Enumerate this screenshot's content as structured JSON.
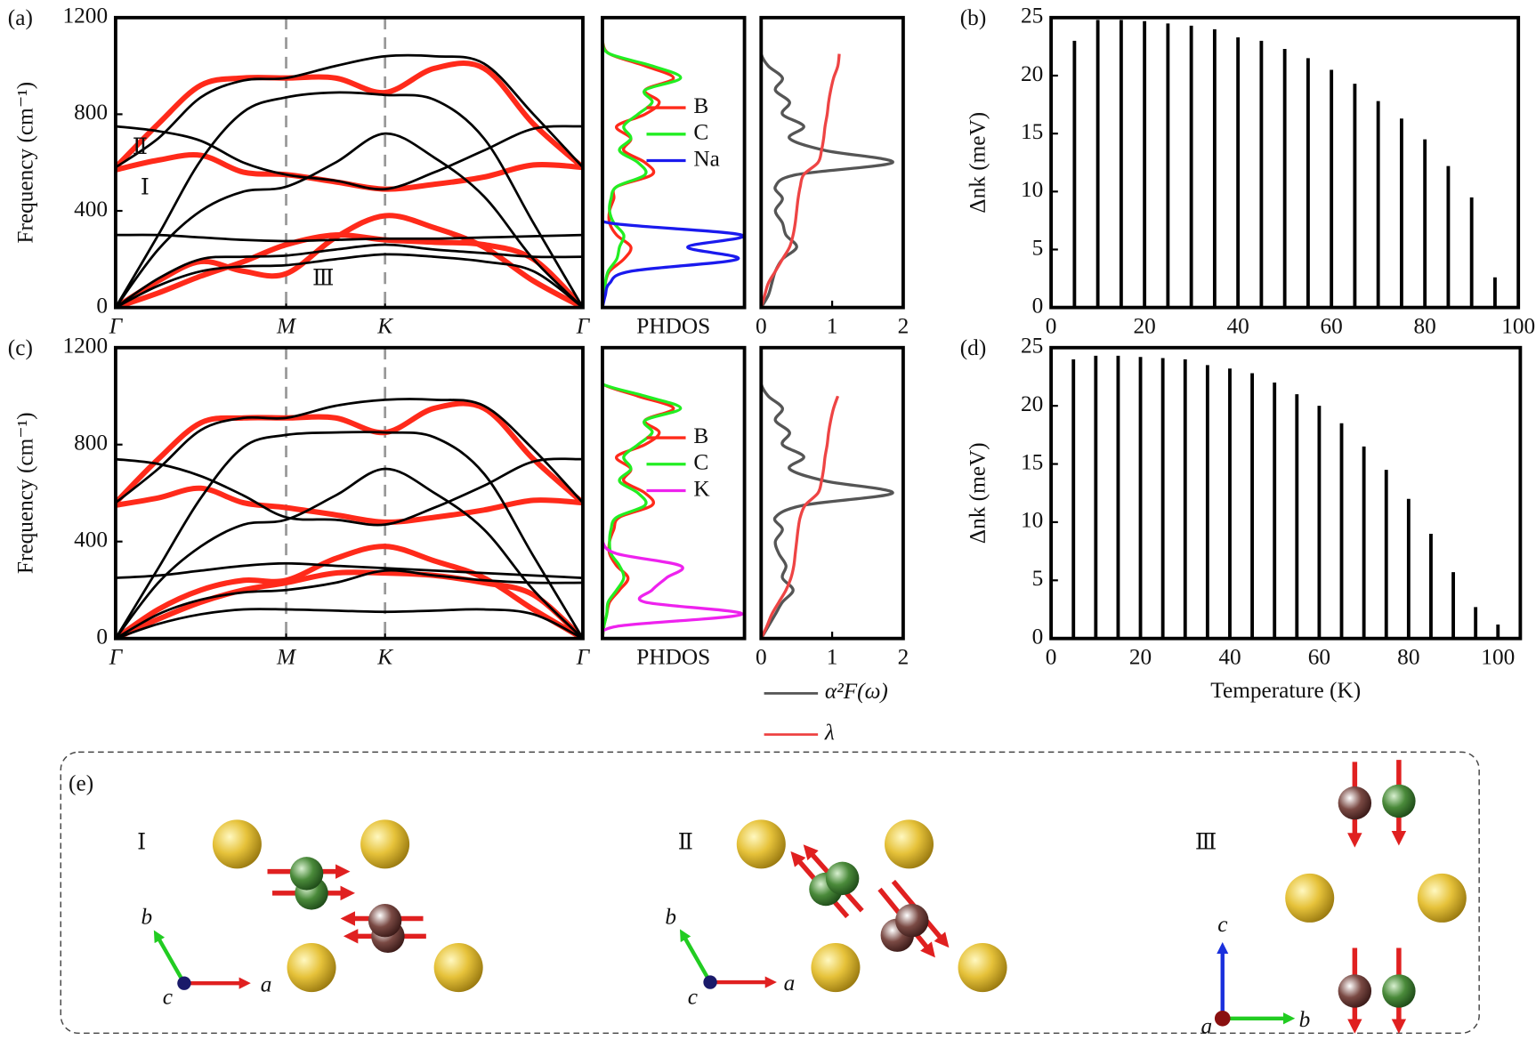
{
  "chart_data": [
    {
      "type": "line",
      "label": "(a)",
      "ylabel": "Frequency (cm⁻¹)",
      "x": [
        0,
        0.25,
        0.5,
        0.75,
        1,
        1.29,
        1.58,
        1.87,
        2.16,
        2.45,
        2.74
      ],
      "xlim": [
        0,
        2.74
      ],
      "xticks": [
        {
          "value": 0,
          "label": "Γ"
        },
        {
          "value": 1,
          "label": "M"
        },
        {
          "value": 1.58,
          "label": "K"
        },
        {
          "value": 2.74,
          "label": "Γ"
        }
      ],
      "xgrid": true,
      "ylim": [
        0,
        1200
      ],
      "yticks": [
        0,
        400,
        800,
        1200
      ],
      "annotations": [
        "Ⅱ",
        "Ⅰ",
        "Ⅲ"
      ],
      "series": [
        {
          "color": "#000000",
          "values": [
            750,
            730,
            690,
            600,
            550,
            525,
            490,
            560,
            650,
            740,
            750
          ]
        },
        {
          "color": "#000000",
          "values": [
            580,
            700,
            870,
            940,
            950,
            1000,
            1040,
            1040,
            1010,
            800,
            580
          ]
        },
        {
          "color": "#ff2a1a",
          "values": [
            580,
            760,
            920,
            950,
            950,
            950,
            890,
            990,
            990,
            760,
            580
          ]
        },
        {
          "color": "#000000",
          "values": [
            0,
            300,
            610,
            810,
            870,
            890,
            880,
            860,
            700,
            350,
            0
          ]
        },
        {
          "color": "#000000",
          "values": [
            0,
            240,
            400,
            480,
            500,
            600,
            720,
            620,
            460,
            200,
            0
          ]
        },
        {
          "color": "#ff2a1a",
          "values": [
            570,
            610,
            630,
            560,
            550,
            520,
            490,
            510,
            540,
            590,
            580
          ]
        },
        {
          "color": "#000000",
          "values": [
            300,
            300,
            290,
            280,
            275,
            280,
            285,
            285,
            290,
            295,
            300
          ]
        },
        {
          "color": "#ff2a1a",
          "values": [
            0,
            110,
            190,
            150,
            140,
            290,
            380,
            330,
            250,
            110,
            0
          ]
        },
        {
          "color": "#000000",
          "values": [
            0,
            120,
            200,
            210,
            215,
            240,
            260,
            240,
            225,
            210,
            210
          ]
        },
        {
          "color": "#000000",
          "values": [
            0,
            90,
            150,
            170,
            175,
            200,
            220,
            210,
            190,
            150,
            0
          ]
        },
        {
          "color": "#ff2a1a",
          "values": [
            0,
            60,
            130,
            190,
            260,
            300,
            280,
            270,
            260,
            200,
            0
          ]
        }
      ]
    },
    {
      "type": "line",
      "orientation": "horizontal",
      "xlabel": "PHDOS",
      "x": [
        0,
        50,
        100,
        150,
        200,
        250,
        300,
        350,
        400,
        450,
        500,
        550,
        600,
        650,
        700,
        750,
        800,
        850,
        900,
        950,
        1000,
        1050,
        1100
      ],
      "xlim": [
        0,
        1
      ],
      "ylim": [
        0,
        1200
      ],
      "legend": "right",
      "series": [
        {
          "name": "B",
          "color": "#ff2a1a",
          "values": [
            0,
            0.01,
            0.02,
            0.05,
            0.15,
            0.2,
            0.1,
            0.05,
            0.05,
            0.08,
            0.1,
            0.35,
            0.3,
            0.15,
            0.2,
            0.1,
            0.3,
            0.4,
            0.3,
            0.5,
            0.3,
            0.05,
            0
          ]
        },
        {
          "name": "C",
          "color": "#22ee22",
          "values": [
            0,
            0.01,
            0.02,
            0.04,
            0.1,
            0.12,
            0.15,
            0.08,
            0.05,
            0.06,
            0.1,
            0.3,
            0.25,
            0.12,
            0.2,
            0.15,
            0.25,
            0.35,
            0.3,
            0.55,
            0.35,
            0.05,
            0
          ]
        },
        {
          "name": "Na",
          "color": "#1a1aee",
          "values": [
            0,
            0.02,
            0.05,
            0.2,
            0.95,
            0.6,
            0.98,
            0.05,
            0,
            0,
            0,
            0,
            0,
            0,
            0,
            0,
            0,
            0,
            0,
            0,
            0,
            0,
            0
          ]
        }
      ]
    },
    {
      "type": "line",
      "orientation": "horizontal",
      "x": [
        0,
        50,
        100,
        150,
        200,
        250,
        300,
        350,
        400,
        450,
        500,
        550,
        600,
        650,
        700,
        750,
        800,
        850,
        900,
        950,
        1000,
        1050,
        1100
      ],
      "xlim": [
        0,
        2
      ],
      "xticks": [
        0,
        1,
        2
      ],
      "ylim": [
        0,
        1200
      ],
      "series": [
        {
          "color": "#555555",
          "values": [
            0,
            0.1,
            0.15,
            0.2,
            0.3,
            0.5,
            0.35,
            0.3,
            0.2,
            0.3,
            0.2,
            0.5,
            1.85,
            0.9,
            0.4,
            0.6,
            0.3,
            0.4,
            0.2,
            0.3,
            0.1,
            0,
            0
          ]
        },
        {
          "color": "#ee4444",
          "values": [
            0,
            0.05,
            0.1,
            0.2,
            0.3,
            0.4,
            0.45,
            0.48,
            0.5,
            0.52,
            0.55,
            0.6,
            0.8,
            0.85,
            0.88,
            0.9,
            0.93,
            0.95,
            0.98,
            1.02,
            1.08,
            1.1,
            null
          ]
        }
      ]
    },
    {
      "type": "bar",
      "label": "(b)",
      "ylabel": "Δnk (meV)",
      "x": [
        5,
        10,
        15,
        20,
        25,
        30,
        35,
        40,
        45,
        50,
        55,
        60,
        65,
        70,
        75,
        80,
        85,
        90,
        95
      ],
      "values": [
        23,
        24.8,
        24.8,
        24.7,
        24.5,
        24.3,
        24,
        23.3,
        23,
        22.3,
        21.5,
        20.5,
        19.3,
        17.8,
        16.3,
        14.5,
        12.2,
        9.5,
        2.6
      ],
      "color": "#000000",
      "xlim": [
        0,
        100
      ],
      "xticks": [
        0,
        20,
        40,
        60,
        80,
        100
      ],
      "ylim": [
        0,
        25
      ],
      "yticks": [
        0,
        5,
        10,
        15,
        20,
        25
      ]
    },
    {
      "type": "line",
      "label": "(c)",
      "ylabel": "Frequency (cm⁻¹)",
      "x": [
        0,
        0.25,
        0.5,
        0.75,
        1,
        1.29,
        1.58,
        1.87,
        2.16,
        2.45,
        2.74
      ],
      "xlim": [
        0,
        2.74
      ],
      "xticks": [
        {
          "value": 0,
          "label": "Γ"
        },
        {
          "value": 1,
          "label": "M"
        },
        {
          "value": 1.58,
          "label": "K"
        },
        {
          "value": 2.74,
          "label": "Γ"
        }
      ],
      "xgrid": true,
      "ylim": [
        0,
        1200
      ],
      "yticks": [
        0,
        400,
        800,
        1200
      ],
      "series": [
        {
          "color": "#000000",
          "values": [
            740,
            720,
            670,
            590,
            500,
            490,
            470,
            540,
            630,
            730,
            740
          ]
        },
        {
          "color": "#000000",
          "values": [
            560,
            700,
            860,
            910,
            910,
            960,
            985,
            985,
            960,
            780,
            560
          ]
        },
        {
          "color": "#ff2a1a",
          "values": [
            560,
            740,
            890,
            910,
            910,
            910,
            850,
            950,
            950,
            740,
            560
          ]
        },
        {
          "color": "#000000",
          "values": [
            0,
            290,
            580,
            790,
            840,
            850,
            850,
            830,
            680,
            340,
            0
          ]
        },
        {
          "color": "#000000",
          "values": [
            0,
            230,
            380,
            470,
            490,
            590,
            700,
            600,
            450,
            200,
            0
          ]
        },
        {
          "color": "#ff2a1a",
          "values": [
            550,
            580,
            620,
            560,
            540,
            510,
            480,
            500,
            530,
            570,
            560
          ]
        },
        {
          "color": "#000000",
          "values": [
            250,
            260,
            280,
            300,
            310,
            300,
            290,
            280,
            270,
            260,
            250
          ]
        },
        {
          "color": "#ff2a1a",
          "values": [
            0,
            120,
            200,
            240,
            240,
            330,
            380,
            320,
            250,
            120,
            0
          ]
        },
        {
          "color": "#000000",
          "values": [
            0,
            100,
            160,
            190,
            200,
            230,
            280,
            260,
            240,
            230,
            230
          ]
        },
        {
          "color": "#000000",
          "values": [
            0,
            60,
            100,
            120,
            120,
            115,
            110,
            115,
            120,
            100,
            0
          ]
        },
        {
          "color": "#ff2a1a",
          "values": [
            0,
            80,
            150,
            200,
            230,
            270,
            270,
            260,
            230,
            180,
            0
          ]
        }
      ]
    },
    {
      "type": "line",
      "orientation": "horizontal",
      "xlabel": "PHDOS",
      "x": [
        0,
        50,
        100,
        150,
        200,
        250,
        300,
        350,
        400,
        450,
        500,
        550,
        600,
        650,
        700,
        750,
        800,
        850,
        900,
        950,
        1000,
        1050,
        1100
      ],
      "xlim": [
        0,
        1
      ],
      "ylim": [
        0,
        1200
      ],
      "legend": "right",
      "series": [
        {
          "name": "B",
          "color": "#ff2a1a",
          "values": [
            0,
            0.01,
            0.03,
            0.05,
            0.12,
            0.18,
            0.1,
            0.05,
            0.05,
            0.08,
            0.12,
            0.35,
            0.3,
            0.15,
            0.2,
            0.1,
            0.3,
            0.4,
            0.3,
            0.5,
            0.25,
            0,
            0
          ]
        },
        {
          "name": "C",
          "color": "#22ee22",
          "values": [
            0,
            0.01,
            0.03,
            0.04,
            0.1,
            0.15,
            0.12,
            0.06,
            0.05,
            0.06,
            0.1,
            0.3,
            0.25,
            0.12,
            0.2,
            0.15,
            0.25,
            0.35,
            0.3,
            0.55,
            0.3,
            0,
            0
          ]
        },
        {
          "name": "K",
          "color": "#ee22ee",
          "values": [
            0,
            0.1,
            0.98,
            0.3,
            0.35,
            0.45,
            0.55,
            0.1,
            0,
            0,
            0,
            0,
            0,
            0,
            0,
            0,
            0,
            0,
            0,
            0,
            0,
            0,
            0
          ]
        }
      ]
    },
    {
      "type": "line",
      "orientation": "horizontal",
      "x": [
        0,
        50,
        100,
        150,
        200,
        250,
        300,
        350,
        400,
        450,
        500,
        550,
        600,
        650,
        700,
        750,
        800,
        850,
        900,
        950,
        1000,
        1050,
        1100
      ],
      "xlim": [
        0,
        2
      ],
      "xticks": [
        0,
        1,
        2
      ],
      "ylim": [
        0,
        1200
      ],
      "legend": "below",
      "series": [
        {
          "name": "α²F(ω)",
          "color": "#555555",
          "values": [
            0,
            0.1,
            0.2,
            0.3,
            0.45,
            0.3,
            0.35,
            0.25,
            0.2,
            0.3,
            0.2,
            0.6,
            1.85,
            0.9,
            0.4,
            0.6,
            0.3,
            0.4,
            0.2,
            0.3,
            0.1,
            0,
            0
          ]
        },
        {
          "name": "λ",
          "color": "#ee4444",
          "values": [
            0,
            0.08,
            0.15,
            0.25,
            0.35,
            0.42,
            0.46,
            0.48,
            0.5,
            0.52,
            0.55,
            0.62,
            0.8,
            0.85,
            0.88,
            0.9,
            0.93,
            0.95,
            0.98,
            1.02,
            1.08,
            null,
            null
          ]
        }
      ]
    },
    {
      "type": "bar",
      "label": "(d)",
      "ylabel": "Δnk (meV)",
      "xlabel": "Temperature (K)",
      "x": [
        5,
        10,
        15,
        20,
        25,
        30,
        35,
        40,
        45,
        50,
        55,
        60,
        65,
        70,
        75,
        80,
        85,
        90,
        95,
        100
      ],
      "values": [
        24,
        24.3,
        24.3,
        24.2,
        24.1,
        24,
        23.5,
        23.2,
        22.8,
        22,
        21,
        20,
        18.5,
        16.5,
        14.5,
        12,
        9,
        5.7,
        2.7,
        1.2
      ],
      "color": "#000000",
      "xlim": [
        0,
        105
      ],
      "xticks": [
        0,
        20,
        40,
        60,
        80,
        100
      ],
      "ylim": [
        0,
        25
      ],
      "yticks": [
        0,
        5,
        10,
        15,
        20,
        25
      ]
    }
  ],
  "panel_e": {
    "label": "(e)",
    "modes": [
      {
        "label": "Ⅰ",
        "axes": [
          "a",
          "b",
          "c"
        ]
      },
      {
        "label": "Ⅱ",
        "axes": [
          "a",
          "b",
          "c"
        ]
      },
      {
        "label": "Ⅲ",
        "axes": [
          "a",
          "b",
          "c"
        ]
      }
    ]
  }
}
